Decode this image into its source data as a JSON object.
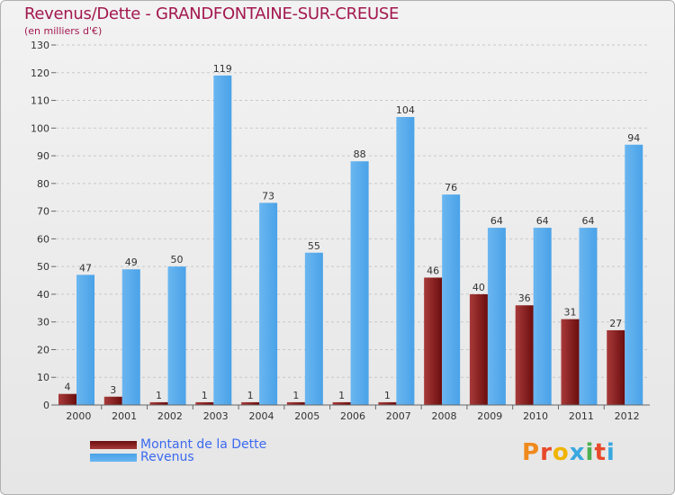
{
  "header": {
    "title": "Revenus/Dette - GRANDFONTAINE-SUR-CREUSE",
    "subtitle": "(en milliers d'€)"
  },
  "legend": {
    "debt_label": "Montant de la Dette",
    "revenue_label": "Revenus"
  },
  "logo": {
    "text": "Proxiti"
  },
  "colors": {
    "debt": "#6b0d0d",
    "debt_light": "#a83a3a",
    "revenue": "#4aa2e8",
    "revenue_light": "#6ab6f0",
    "title": "#a3184f",
    "legend_text": "#3b69f0"
  },
  "chart_data": {
    "type": "bar",
    "title": "Revenus/Dette - GRANDFONTAINE-SUR-CREUSE",
    "ylabel": "(en milliers d'€)",
    "xlabel": "",
    "categories": [
      "2000",
      "2001",
      "2002",
      "2003",
      "2004",
      "2005",
      "2006",
      "2007",
      "2008",
      "2009",
      "2010",
      "2011",
      "2012"
    ],
    "series": [
      {
        "name": "Montant de la Dette",
        "values": [
          4,
          3,
          1,
          1,
          1,
          1,
          1,
          1,
          46,
          40,
          36,
          31,
          27
        ]
      },
      {
        "name": "Revenus",
        "values": [
          47,
          49,
          50,
          119,
          73,
          55,
          88,
          104,
          76,
          64,
          64,
          64,
          94
        ]
      }
    ],
    "ylim": [
      0,
      130
    ],
    "yticks": [
      0,
      10,
      20,
      30,
      40,
      50,
      60,
      70,
      80,
      90,
      100,
      110,
      120,
      130
    ],
    "grid": "dashed horizontal",
    "legend_position": "bottom-left"
  }
}
